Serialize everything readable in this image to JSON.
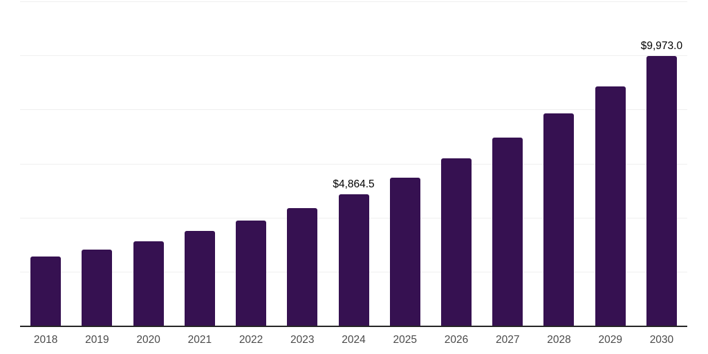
{
  "chart_data": {
    "type": "bar",
    "title": "",
    "xlabel": "",
    "ylabel": "",
    "categories": [
      "2018",
      "2019",
      "2020",
      "2021",
      "2022",
      "2023",
      "2024",
      "2025",
      "2026",
      "2027",
      "2028",
      "2029",
      "2030"
    ],
    "values": [
      2560,
      2815,
      3125,
      3495,
      3890,
      4350,
      4864.5,
      5485,
      6190,
      6965,
      7850,
      8855,
      9973
    ],
    "data_labels": {
      "2024": "$4,864.5",
      "2030": "$9,973.0"
    },
    "ylim": [
      0,
      12000
    ],
    "gridline_step": 2000,
    "grid_on": true,
    "legend": "none",
    "colors": {
      "bar": "#361151",
      "gridline": "#efefef",
      "axis": "#262626",
      "data_label": "#000000",
      "tick_label": "#4a4a4a"
    }
  }
}
